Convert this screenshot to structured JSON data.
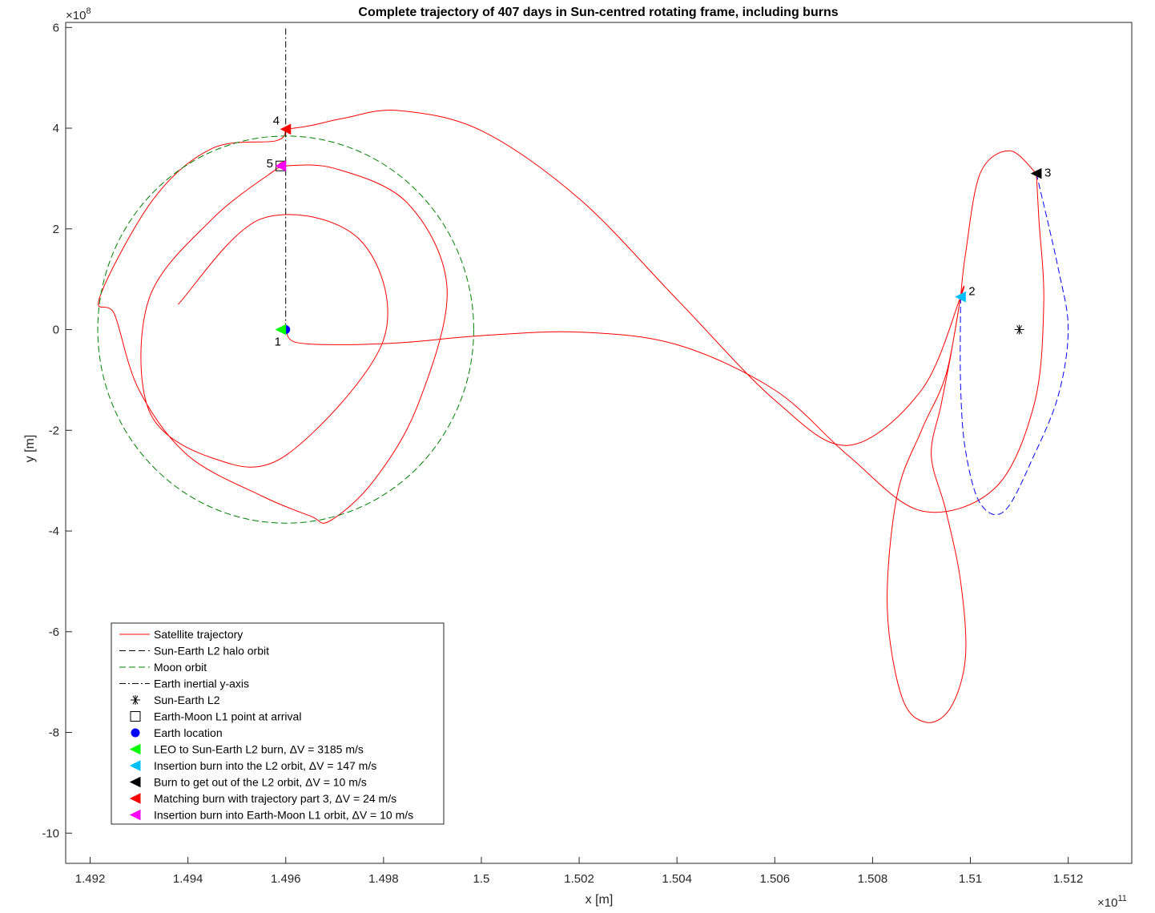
{
  "chart_data": {
    "type": "line",
    "title": "Complete trajectory of 407 days in Sun-centred rotating frame, including burns",
    "xlabel": "x [m]",
    "ylabel": "y [m]",
    "x_exponent_label": "×10",
    "x_exponent": "11",
    "y_exponent_label": "×10",
    "y_exponent": "8",
    "xlim": [
      1.4915,
      1.5133
    ],
    "ylim": [
      -10.6,
      6.1
    ],
    "x_ticks": [
      1.492,
      1.494,
      1.496,
      1.498,
      1.5,
      1.502,
      1.504,
      1.506,
      1.508,
      1.51,
      1.512
    ],
    "x_tick_labels": [
      "1.492",
      "1.494",
      "1.496",
      "1.498",
      "1.5",
      "1.502",
      "1.504",
      "1.506",
      "1.508",
      "1.51",
      "1.512"
    ],
    "y_ticks": [
      6,
      4,
      2,
      0,
      -2,
      -4,
      -6,
      -8,
      -10
    ],
    "y_tick_labels": [
      "6",
      "4",
      "2",
      "0",
      "-2",
      "-4",
      "-6",
      "-8",
      "-10"
    ],
    "grid": false,
    "legend_position": "bottom-left",
    "series": [
      {
        "name": "Satellite trajectory",
        "style": "solid",
        "color": "#ff0000",
        "points": [
          [
            1.496,
            0
          ],
          [
            1.4962,
            -0.25
          ],
          [
            1.4972,
            -0.3
          ],
          [
            1.4985,
            -0.25
          ],
          [
            1.5,
            -0.12
          ],
          [
            1.502,
            -0.05
          ],
          [
            1.504,
            -0.3
          ],
          [
            1.506,
            -1.2
          ],
          [
            1.5075,
            -2.5
          ],
          [
            1.509,
            -3.6
          ],
          [
            1.5105,
            -3.15
          ],
          [
            1.5113,
            -1.5
          ],
          [
            1.5115,
            0.5
          ],
          [
            1.5114,
            2.2
          ],
          [
            1.51135,
            3.1
          ],
          [
            1.51135,
            3.1
          ],
          [
            1.5108,
            3.55
          ],
          [
            1.5102,
            3.1
          ],
          [
            1.5099,
            1.5
          ],
          [
            1.5098,
            0.65
          ],
          [
            1.5098,
            0.65
          ],
          [
            1.5096,
            -0.5
          ],
          [
            1.5094,
            -1.5
          ],
          [
            1.5092,
            -2.5
          ],
          [
            1.5095,
            -3.6
          ],
          [
            1.5098,
            -5.0
          ],
          [
            1.5099,
            -6.5
          ],
          [
            1.5096,
            -7.5
          ],
          [
            1.5091,
            -7.8
          ],
          [
            1.5086,
            -7.3
          ],
          [
            1.5083,
            -5.5
          ],
          [
            1.5085,
            -3.3
          ],
          [
            1.509,
            -2.0
          ],
          [
            1.5095,
            -0.9
          ],
          [
            1.5098,
            0.65
          ],
          [
            1.5098,
            0.65
          ],
          [
            1.509,
            -1.2
          ],
          [
            1.5075,
            -2.3
          ],
          [
            1.506,
            -1.4
          ],
          [
            1.504,
            0.6
          ],
          [
            1.502,
            2.6
          ],
          [
            1.5,
            3.95
          ],
          [
            1.4983,
            4.35
          ],
          [
            1.4972,
            4.2
          ],
          [
            1.4965,
            4.05
          ],
          [
            1.496,
            3.98
          ],
          [
            1.496,
            3.98
          ],
          [
            1.4958,
            3.75
          ],
          [
            1.4945,
            3.6
          ],
          [
            1.4933,
            2.6
          ],
          [
            1.4922,
            0.65
          ],
          [
            1.4925,
            0.3
          ],
          [
            1.493,
            -1.2
          ],
          [
            1.494,
            -2.5
          ],
          [
            1.4955,
            -3.3
          ],
          [
            1.4965,
            -3.7
          ],
          [
            1.4969,
            -3.8
          ],
          [
            1.4978,
            -3.0
          ],
          [
            1.4987,
            -1.5
          ],
          [
            1.4993,
            0.8
          ],
          [
            1.4985,
            2.5
          ],
          [
            1.497,
            3.2
          ],
          [
            1.4959,
            3.25
          ],
          [
            1.4959,
            3.25
          ],
          [
            1.4945,
            2.2
          ],
          [
            1.4932,
            0.6
          ],
          [
            1.4932,
            -1.6
          ],
          [
            1.4945,
            -2.55
          ],
          [
            1.496,
            -2.5
          ],
          [
            1.498,
            -0.2
          ],
          [
            1.4975,
            1.8
          ],
          [
            1.4955,
            2.2
          ],
          [
            1.4938,
            0.5
          ]
        ]
      },
      {
        "name": "Sun-Earth L2 halo orbit",
        "style": "dashed",
        "color": "#0000ff",
        "points": [
          [
            1.51135,
            3.1
          ],
          [
            1.5118,
            1.2
          ],
          [
            1.512,
            0
          ],
          [
            1.5118,
            -1.3
          ],
          [
            1.5113,
            -2.5
          ],
          [
            1.5107,
            -3.6
          ],
          [
            1.5102,
            -3.45
          ],
          [
            1.5099,
            -2.4
          ],
          [
            1.5098,
            -1.1
          ],
          [
            1.5098,
            0.65
          ]
        ]
      },
      {
        "name": "Moon orbit",
        "style": "dashed",
        "color": "#008000",
        "center": [
          1.496,
          0
        ],
        "radius_x": 0.003844,
        "radius_y": 3.844
      },
      {
        "name": "Earth inertial y-axis",
        "style": "dashdot",
        "color": "#000000",
        "points": [
          [
            1.496,
            0
          ],
          [
            1.496,
            6
          ]
        ]
      },
      {
        "name": "Sun-Earth L2",
        "style": "marker",
        "marker": "asterisk",
        "color": "#000000",
        "points": [
          [
            1.511,
            0
          ]
        ]
      },
      {
        "name": "Earth-Moon L1 point at arrival",
        "style": "marker",
        "marker": "square",
        "color": "#000000",
        "points": [
          [
            1.4959,
            3.25
          ]
        ]
      },
      {
        "name": "Earth location",
        "style": "marker",
        "marker": "circle",
        "color": "#0000ff",
        "points": [
          [
            1.496,
            0
          ]
        ]
      },
      {
        "name": "LEO to Sun-Earth L2 burn, ΔV = 3185 m/s",
        "style": "marker",
        "marker": "triangle-left",
        "color": "#00ff00",
        "label": "1",
        "points": [
          [
            1.4959,
            0
          ]
        ]
      },
      {
        "name": "Insertion burn into the L2 orbit, ΔV = 147 m/s",
        "style": "marker",
        "marker": "triangle-left",
        "color": "#00bfff",
        "label": "2",
        "points": [
          [
            1.5098,
            0.65
          ]
        ]
      },
      {
        "name": "Burn to get out of the L2 orbit, ΔV = 10 m/s",
        "style": "marker",
        "marker": "triangle-left",
        "color": "#000000",
        "label": "3",
        "points": [
          [
            1.51135,
            3.1
          ]
        ]
      },
      {
        "name": "Matching burn with trajectory part 3, ΔV = 24 m/s",
        "style": "marker",
        "marker": "triangle-left",
        "color": "#ff0000",
        "label": "4",
        "points": [
          [
            1.496,
            3.98
          ]
        ]
      },
      {
        "name": "Insertion burn into Earth-Moon L1 orbit, ΔV = 10 m/s",
        "style": "marker",
        "marker": "triangle-left",
        "color": "#ff00ff",
        "label": "5",
        "points": [
          [
            1.4959,
            3.25
          ]
        ]
      }
    ]
  }
}
